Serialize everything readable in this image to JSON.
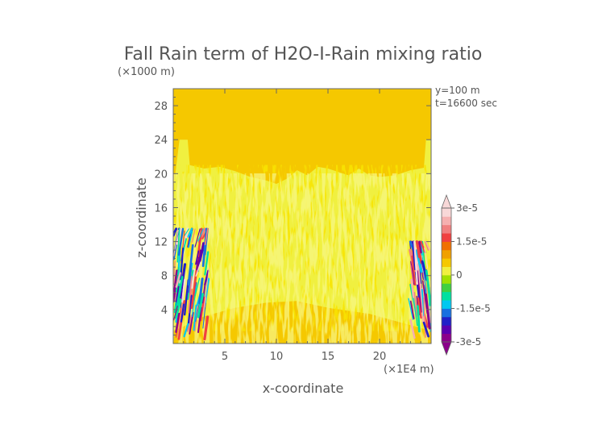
{
  "chart_data": {
    "type": "heatmap",
    "title": "Fall Rain term of H2O-I-Rain mixing ratio",
    "xlabel": "x-coordinate",
    "ylabel": "z-coordinate",
    "x_unit": "(×1E4 m)",
    "y_unit": "(×1000 m)",
    "xlim": [
      0,
      25
    ],
    "ylim": [
      0,
      30
    ],
    "x_ticks": [
      "5",
      "10",
      "15",
      "20"
    ],
    "x_tick_values": [
      5,
      10,
      15,
      20
    ],
    "y_ticks": [
      "4",
      "8",
      "12",
      "16",
      "20",
      "24",
      "28"
    ],
    "y_tick_values": [
      4,
      8,
      12,
      16,
      20,
      24,
      28
    ],
    "annotations": [
      "y=100 m",
      "t=16600 sec"
    ],
    "colorbar": {
      "min": -3e-05,
      "max": 3e-05,
      "labels": [
        "3e-5",
        "1.5e-5",
        "0",
        "-1.5e-5",
        "-3e-5"
      ],
      "label_values": [
        3e-05,
        1.5e-05,
        0,
        -1.5e-05,
        -3e-05
      ],
      "colors": [
        "#8b008b",
        "#5a00b0",
        "#2020c8",
        "#1870e0",
        "#00c8f0",
        "#00e0a0",
        "#40d040",
        "#a0e000",
        "#f0f040",
        "#f5c800",
        "#f0a000",
        "#f07000",
        "#f04040",
        "#f08080",
        "#f5b0b0",
        "#f8d8d8"
      ]
    },
    "regions": {
      "background_value": 0,
      "background_color": "#f5c800",
      "weak_positive_color": "#f0f040",
      "mid_upper_band": "weak positive band over most of the domain from about z=1 to z=20 (×1000 m)",
      "strong_edges": "alternating strong positive/negative values near x≈0–3 and x≈23–25 (×1E4 m) for z≈1–13 (×1000 m)"
    }
  }
}
